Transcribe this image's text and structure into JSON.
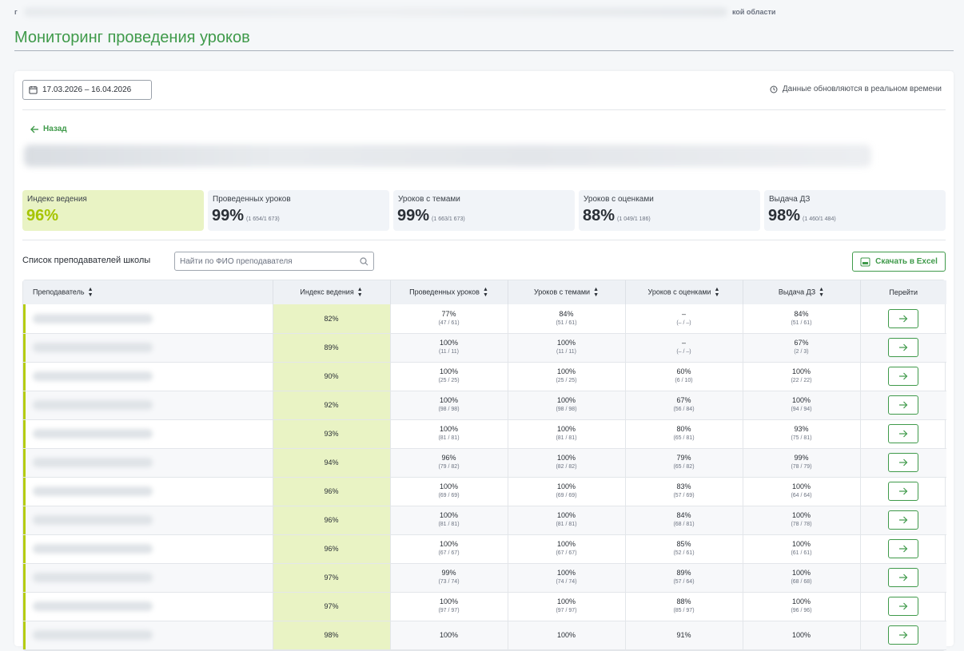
{
  "breadcrumb": {
    "start": "г",
    "tail": "кой области"
  },
  "page": {
    "title": "Мониторинг проведения уроков"
  },
  "filters": {
    "date_range": "17.03.2026 – 16.04.2026",
    "realtime_note": "Данные обновляются в реальном времени"
  },
  "nav": {
    "back_label": "Назад"
  },
  "stats": [
    {
      "label": "Индекс ведения",
      "value": "96%",
      "sub": ""
    },
    {
      "label": "Проведенных уроков",
      "value": "99%",
      "sub": "(1 654/1 673)"
    },
    {
      "label": "Уроков с темами",
      "value": "99%",
      "sub": "(1 663/1 673)"
    },
    {
      "label": "Уроков с оценками",
      "value": "88%",
      "sub": "(1 049/1 186)"
    },
    {
      "label": "Выдача ДЗ",
      "value": "98%",
      "sub": "(1 460/1 484)"
    }
  ],
  "list": {
    "title": "Список преподавателей школы",
    "search_placeholder": "Найти по ФИО преподавателя",
    "excel_label": "Скачать в Excel"
  },
  "table": {
    "columns": [
      "Преподаватель",
      "Индекс ведения",
      "Проведенных уроков",
      "Уроков с темами",
      "Уроков с оценками",
      "Выдача ДЗ",
      "Перейти"
    ],
    "rows": [
      {
        "index": "82%",
        "lessons": [
          "77%",
          "(47 / 61)"
        ],
        "topics": [
          "84%",
          "(51 / 61)"
        ],
        "grades": [
          "–",
          "(– / –)"
        ],
        "hw": [
          "84%",
          "(51 / 61)"
        ]
      },
      {
        "index": "89%",
        "lessons": [
          "100%",
          "(11 / 11)"
        ],
        "topics": [
          "100%",
          "(11 / 11)"
        ],
        "grades": [
          "–",
          "(– / –)"
        ],
        "hw": [
          "67%",
          "(2 / 3)"
        ]
      },
      {
        "index": "90%",
        "lessons": [
          "100%",
          "(25 / 25)"
        ],
        "topics": [
          "100%",
          "(25 / 25)"
        ],
        "grades": [
          "60%",
          "(6 / 10)"
        ],
        "hw": [
          "100%",
          "(22 / 22)"
        ]
      },
      {
        "index": "92%",
        "lessons": [
          "100%",
          "(98 / 98)"
        ],
        "topics": [
          "100%",
          "(98 / 98)"
        ],
        "grades": [
          "67%",
          "(56 / 84)"
        ],
        "hw": [
          "100%",
          "(94 / 94)"
        ]
      },
      {
        "index": "93%",
        "lessons": [
          "100%",
          "(81 / 81)"
        ],
        "topics": [
          "100%",
          "(81 / 81)"
        ],
        "grades": [
          "80%",
          "(65 / 81)"
        ],
        "hw": [
          "93%",
          "(75 / 81)"
        ]
      },
      {
        "index": "94%",
        "lessons": [
          "96%",
          "(79 / 82)"
        ],
        "topics": [
          "100%",
          "(82 / 82)"
        ],
        "grades": [
          "79%",
          "(65 / 82)"
        ],
        "hw": [
          "99%",
          "(78 / 79)"
        ]
      },
      {
        "index": "96%",
        "lessons": [
          "100%",
          "(69 / 69)"
        ],
        "topics": [
          "100%",
          "(69 / 69)"
        ],
        "grades": [
          "83%",
          "(57 / 69)"
        ],
        "hw": [
          "100%",
          "(64 / 64)"
        ]
      },
      {
        "index": "96%",
        "lessons": [
          "100%",
          "(81 / 81)"
        ],
        "topics": [
          "100%",
          "(81 / 81)"
        ],
        "grades": [
          "84%",
          "(68 / 81)"
        ],
        "hw": [
          "100%",
          "(78 / 78)"
        ]
      },
      {
        "index": "96%",
        "lessons": [
          "100%",
          "(67 / 67)"
        ],
        "topics": [
          "100%",
          "(67 / 67)"
        ],
        "grades": [
          "85%",
          "(52 / 61)"
        ],
        "hw": [
          "100%",
          "(61 / 61)"
        ]
      },
      {
        "index": "97%",
        "lessons": [
          "99%",
          "(73 / 74)"
        ],
        "topics": [
          "100%",
          "(74 / 74)"
        ],
        "grades": [
          "89%",
          "(57 / 64)"
        ],
        "hw": [
          "100%",
          "(68 / 68)"
        ]
      },
      {
        "index": "97%",
        "lessons": [
          "100%",
          "(97 / 97)"
        ],
        "topics": [
          "100%",
          "(97 / 97)"
        ],
        "grades": [
          "88%",
          "(85 / 97)"
        ],
        "hw": [
          "100%",
          "(96 / 96)"
        ]
      },
      {
        "index": "98%",
        "lessons": [
          "100%",
          ""
        ],
        "topics": [
          "100%",
          ""
        ],
        "grades": [
          "91%",
          ""
        ],
        "hw": [
          "100%",
          ""
        ]
      }
    ]
  },
  "colors": {
    "accent": "#3f9a4a",
    "highlight": "#e9f3c4",
    "index_value": "#a6c400"
  }
}
